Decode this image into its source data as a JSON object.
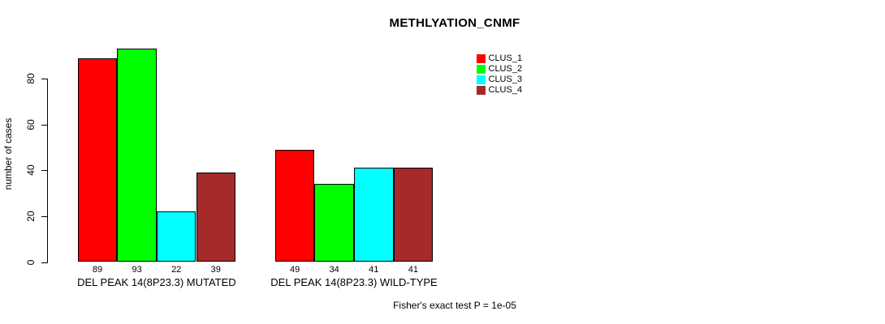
{
  "chart_data": {
    "type": "bar",
    "title": "METHLYATION_CNMF",
    "ylabel": "number of cases",
    "xlabel": "",
    "ylim": [
      0,
      93
    ],
    "yticks": [
      0,
      20,
      40,
      60,
      80
    ],
    "grid": false,
    "legend_position": "top-right",
    "categories": [
      "DEL PEAK 14(8P23.3) MUTATED",
      "DEL PEAK 14(8P23.3) WILD-TYPE"
    ],
    "series": [
      {
        "name": "CLUS_1",
        "color": "#FF0000",
        "values": [
          89,
          49
        ]
      },
      {
        "name": "CLUS_2",
        "color": "#00FF00",
        "values": [
          93,
          34
        ]
      },
      {
        "name": "CLUS_3",
        "color": "#00FFFF",
        "values": [
          22,
          41
        ]
      },
      {
        "name": "CLUS_4",
        "color": "#A52A2A",
        "values": [
          39,
          41
        ]
      }
    ],
    "bar_value_labels": [
      [
        89,
        93,
        22,
        39
      ],
      [
        49,
        34,
        41,
        41
      ]
    ],
    "annotation": "Fisher's exact test P = 1e-05"
  },
  "colors": {
    "background": "#FFFFFF",
    "axis": "#000000",
    "bar_border": "#000000",
    "text": "#000000"
  }
}
